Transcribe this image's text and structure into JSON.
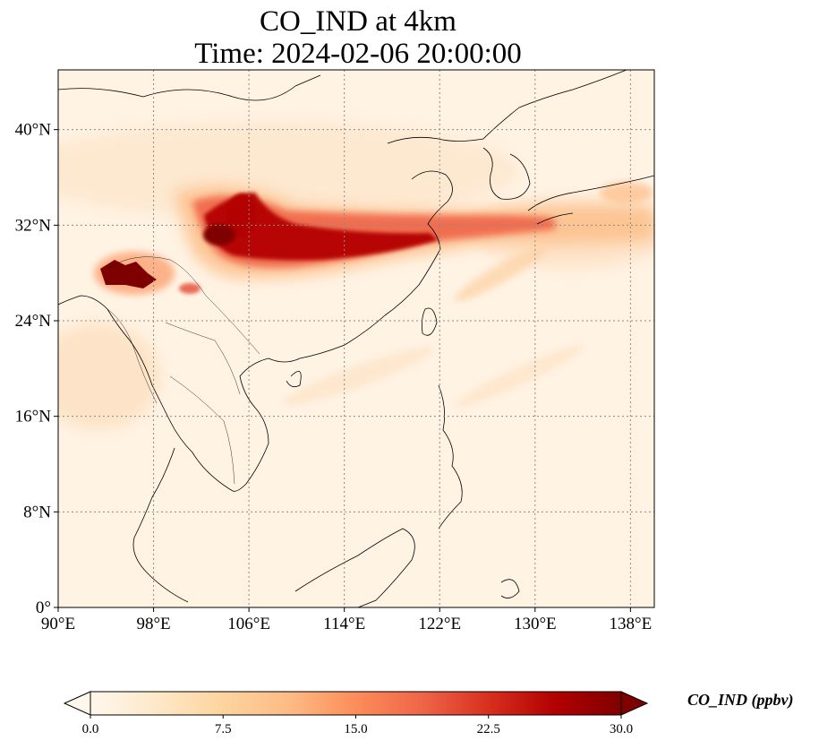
{
  "title": {
    "line1": "CO_IND at 4km",
    "line2": "Time: 2024-02-06 20:00:00"
  },
  "map": {
    "lon_range": [
      90,
      140
    ],
    "lat_range": [
      0,
      45
    ],
    "lon_ticks": [
      {
        "value": 90,
        "label": "90°E"
      },
      {
        "value": 98,
        "label": "98°E"
      },
      {
        "value": 106,
        "label": "106°E"
      },
      {
        "value": 114,
        "label": "114°E"
      },
      {
        "value": 122,
        "label": "122°E"
      },
      {
        "value": 130,
        "label": "130°E"
      },
      {
        "value": 138,
        "label": "138°E"
      }
    ],
    "lat_ticks": [
      {
        "value": 0,
        "label": "0°"
      },
      {
        "value": 8,
        "label": "8°N"
      },
      {
        "value": 16,
        "label": "16°N"
      },
      {
        "value": 24,
        "label": "24°N"
      },
      {
        "value": 32,
        "label": "32°N"
      },
      {
        "value": 40,
        "label": "40°N"
      }
    ],
    "gridlines": true,
    "variable": "CO_IND",
    "units": "ppbv",
    "colormap": "OrRd",
    "colors": {
      "low": "#fff7ec",
      "mid": "#fdbb84",
      "high": "#d7301f",
      "max": "#7f0000",
      "grid": "#8a8a8a",
      "coast": "#000000"
    }
  },
  "colorbar": {
    "label": "CO_IND (ppbv)",
    "min": 0.0,
    "max": 30.0,
    "extend": "both",
    "ticks": [
      {
        "value": 0.0,
        "label": "0.0"
      },
      {
        "value": 7.5,
        "label": "7.5"
      },
      {
        "value": 15.0,
        "label": "15.0"
      },
      {
        "value": 22.5,
        "label": "22.5"
      },
      {
        "value": 30.0,
        "label": "30.0"
      }
    ]
  }
}
